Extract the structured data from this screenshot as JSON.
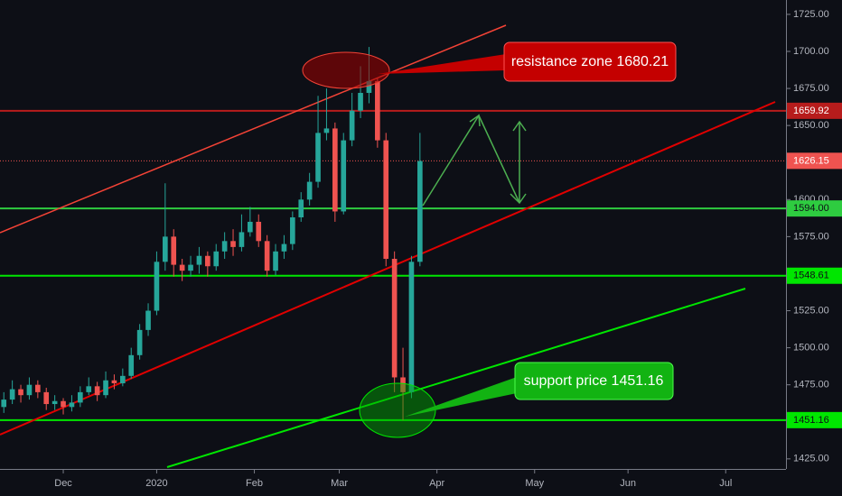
{
  "chart_data": {
    "type": "candlestick",
    "x": [
      -14,
      -12,
      -10,
      -8,
      -6,
      -4,
      -2,
      0,
      2,
      4,
      6,
      8,
      10,
      12,
      14,
      16,
      18,
      20,
      22,
      24,
      26,
      28,
      30,
      32,
      34,
      36,
      38,
      40,
      42,
      44,
      46,
      48,
      50,
      52,
      54,
      56,
      58,
      60,
      62,
      64,
      66,
      68,
      70,
      72,
      74,
      76,
      78,
      80,
      82,
      84
    ],
    "open": [
      1460,
      1465,
      1472,
      1468,
      1475,
      1470,
      1462,
      1464,
      1460,
      1463,
      1470,
      1474,
      1468,
      1478,
      1476,
      1481,
      1495,
      1512,
      1525,
      1558,
      1575,
      1556,
      1552,
      1556,
      1562,
      1555,
      1565,
      1572,
      1568,
      1578,
      1585,
      1572,
      1552,
      1565,
      1570,
      1588,
      1600,
      1612,
      1645,
      1648,
      1592,
      1640,
      1660,
      1672,
      1680,
      1640,
      1560,
      1480,
      1470,
      1558
    ],
    "high": [
      1470,
      1478,
      1475,
      1480,
      1478,
      1473,
      1468,
      1466,
      1468,
      1474,
      1480,
      1477,
      1484,
      1482,
      1486,
      1500,
      1516,
      1530,
      1565,
      1611,
      1580,
      1560,
      1562,
      1568,
      1565,
      1570,
      1578,
      1580,
      1590,
      1595,
      1590,
      1576,
      1570,
      1576,
      1592,
      1605,
      1618,
      1670,
      1675,
      1652,
      1645,
      1672,
      1690,
      1703,
      1682,
      1645,
      1565,
      1500,
      1562,
      1645
    ],
    "low": [
      1456,
      1462,
      1463,
      1465,
      1466,
      1458,
      1458,
      1455,
      1457,
      1460,
      1468,
      1464,
      1466,
      1472,
      1474,
      1479,
      1492,
      1508,
      1522,
      1552,
      1548,
      1545,
      1548,
      1550,
      1548,
      1552,
      1560,
      1562,
      1565,
      1575,
      1568,
      1548,
      1549,
      1560,
      1566,
      1585,
      1596,
      1608,
      1640,
      1585,
      1590,
      1636,
      1655,
      1665,
      1635,
      1555,
      1470,
      1451,
      1466,
      1555
    ],
    "close": [
      1465,
      1472,
      1468,
      1475,
      1470,
      1462,
      1464,
      1460,
      1463,
      1470,
      1474,
      1468,
      1478,
      1476,
      1481,
      1495,
      1512,
      1525,
      1558,
      1575,
      1556,
      1552,
      1556,
      1562,
      1555,
      1565,
      1572,
      1568,
      1578,
      1585,
      1572,
      1552,
      1565,
      1570,
      1588,
      1600,
      1612,
      1645,
      1648,
      1592,
      1640,
      1660,
      1672,
      1680,
      1640,
      1560,
      1480,
      1470,
      1558,
      1626
    ],
    "up_color": "#26a69a",
    "down_color": "#ef5350",
    "xlim": [
      -14.9,
      170.2
    ],
    "xticks": [
      {
        "value": 0,
        "label": "Dec"
      },
      {
        "value": 22,
        "label": "2020"
      },
      {
        "value": 45,
        "label": "Feb"
      },
      {
        "value": 65,
        "label": "Mar"
      },
      {
        "value": 88,
        "label": "Apr"
      },
      {
        "value": 111,
        "label": "May"
      },
      {
        "value": 133,
        "label": "Jun"
      },
      {
        "value": 156,
        "label": "Jul"
      }
    ],
    "ylim": [
      1418.2,
      1734.7
    ],
    "yticks": [
      {
        "value": 1725,
        "label": "1725.00"
      },
      {
        "value": 1700,
        "label": "1700.00"
      },
      {
        "value": 1675,
        "label": "1675.00"
      },
      {
        "value": 1650,
        "label": "1650.00"
      },
      {
        "value": 1600,
        "label": "1600.00"
      },
      {
        "value": 1575,
        "label": "1575.00"
      },
      {
        "value": 1525,
        "label": "1525.00"
      },
      {
        "value": 1500,
        "label": "1500.00"
      },
      {
        "value": 1475,
        "label": "1475.00"
      },
      {
        "value": 1425,
        "label": "1425.00"
      }
    ],
    "levels": [
      {
        "value": 1659.92,
        "label": "1659.92",
        "color": "#b71c1c",
        "style": "solid"
      },
      {
        "value": 1626.15,
        "label": "1626.15",
        "color": "#ef5350",
        "style": "dotted"
      },
      {
        "value": 1594.0,
        "label": "1594.00",
        "color": "#2ecc40",
        "style": "solid"
      },
      {
        "value": 1548.61,
        "label": "1548.61",
        "color": "#00e600",
        "style": "solid"
      },
      {
        "value": 1451.16,
        "label": "1451.16",
        "color": "#00e600",
        "style": "solid"
      }
    ],
    "annotations": [
      "resistance zone 1680.21",
      "support price 1451.16"
    ]
  }
}
